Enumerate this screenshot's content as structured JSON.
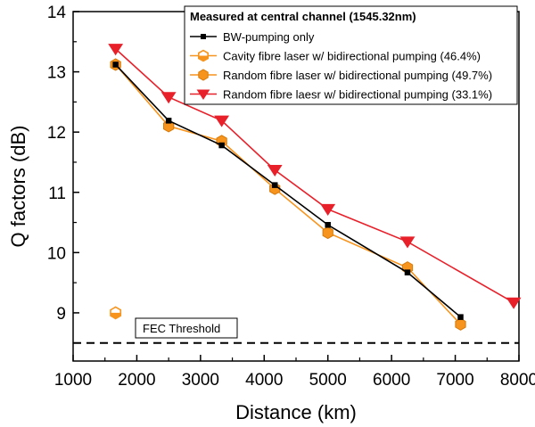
{
  "chart_data": {
    "type": "line",
    "xlabel": "Distance (km)",
    "ylabel": "Q factors (dB)",
    "xlim": [
      1000,
      8000
    ],
    "ylim": [
      8.2,
      14
    ],
    "xticks": [
      1000,
      2000,
      3000,
      4000,
      5000,
      6000,
      7000,
      8000
    ],
    "yticks": [
      9,
      10,
      11,
      12,
      13,
      14
    ],
    "grid": false,
    "legend_title": "Measured at central channel (1545.32nm)",
    "legend_position": "top-right",
    "series": [
      {
        "name": "BW-pumping only",
        "color": "#000000",
        "marker": "square",
        "x": [
          1667,
          2500,
          3333,
          4167,
          5000,
          6250,
          7083
        ],
        "y": [
          13.12,
          12.19,
          11.78,
          11.12,
          10.46,
          9.67,
          8.93
        ]
      },
      {
        "name": "Cavity fibre laser w/ bidirectional pumping (46.4%)",
        "color": "#f7941d",
        "marker": "half-hexagon",
        "x": [
          1667
        ],
        "y": [
          9.0
        ]
      },
      {
        "name": "Random fibre laser w/ bidirectional pumping (49.7%)",
        "color": "#f7941d",
        "marker": "hexagon",
        "x": [
          1667,
          2500,
          3333,
          4167,
          5000,
          6250,
          7083
        ],
        "y": [
          13.12,
          12.1,
          11.85,
          11.06,
          10.33,
          9.75,
          8.81
        ]
      },
      {
        "name": "Random fibre laesr w/ bidirectional pumping (33.1%)",
        "color": "#e8202a",
        "marker": "triangle-down",
        "x": [
          1667,
          2500,
          3333,
          4167,
          5000,
          6250,
          7917
        ],
        "y": [
          13.38,
          12.58,
          12.19,
          11.37,
          10.72,
          10.18,
          9.17
        ]
      }
    ],
    "annotations": [
      {
        "text": "FEC Threshold",
        "y": 8.5,
        "line_style": "dashed"
      }
    ]
  }
}
